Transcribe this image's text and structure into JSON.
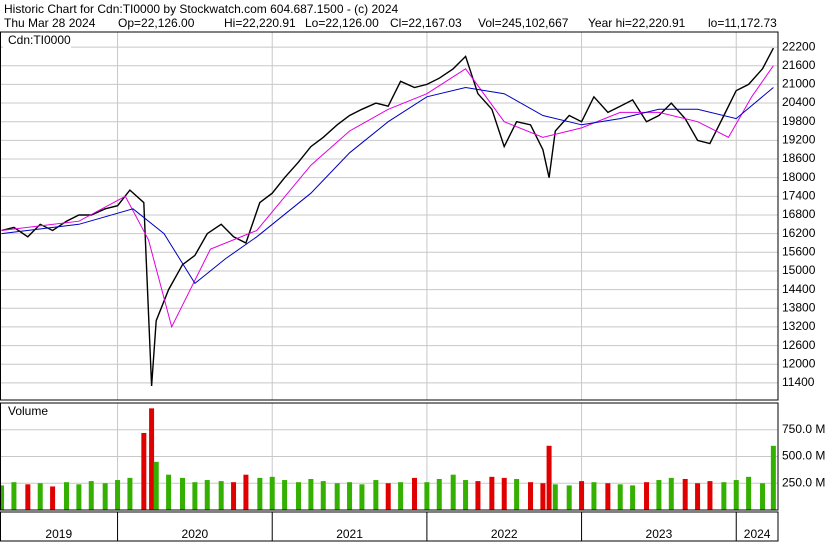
{
  "header": {
    "title": "Historic Chart for Cdn:TI0000 by Stockwatch.com 604.687.1500 - (c) 2024",
    "stats": [
      "Thu Mar 28 2024",
      "Op=22,126.00",
      "Hi=22,220.91",
      "Lo=22,126.00",
      "Cl=22,167.03",
      "Vol=245,102,667",
      "Year hi=22,220.91",
      "lo=11,172.73"
    ]
  },
  "chart_data": [
    {
      "type": "line",
      "title": "Cdn:TI0000",
      "xlim": [
        2019.24,
        2024.27
      ],
      "ylim": [
        10850,
        22685
      ],
      "yticks": [
        11400,
        12000,
        12600,
        13200,
        13800,
        14400,
        15000,
        15600,
        16200,
        16800,
        17400,
        18000,
        18600,
        19200,
        19800,
        20400,
        21000,
        21600,
        22200
      ],
      "grid": true,
      "series": [
        {
          "color": "#000000",
          "x": [
            2019.25,
            2019.33,
            2019.42,
            2019.5,
            2019.58,
            2019.67,
            2019.75,
            2019.83,
            2019.92,
            2020.0,
            2020.08,
            2020.17,
            2020.22,
            2020.25,
            2020.33,
            2020.42,
            2020.5,
            2020.58,
            2020.67,
            2020.75,
            2020.83,
            2020.92,
            2021.0,
            2021.08,
            2021.17,
            2021.25,
            2021.33,
            2021.42,
            2021.5,
            2021.58,
            2021.67,
            2021.75,
            2021.83,
            2021.92,
            2022.0,
            2022.08,
            2022.17,
            2022.25,
            2022.33,
            2022.42,
            2022.5,
            2022.58,
            2022.67,
            2022.75,
            2022.79,
            2022.83,
            2022.92,
            2023.0,
            2023.08,
            2023.17,
            2023.25,
            2023.33,
            2023.42,
            2023.5,
            2023.58,
            2023.67,
            2023.75,
            2023.83,
            2023.92,
            2024.0,
            2024.08,
            2024.17,
            2024.24
          ],
          "values": [
            16300,
            16400,
            16100,
            16500,
            16300,
            16600,
            16800,
            16800,
            17000,
            17100,
            17600,
            17200,
            11300,
            13400,
            14400,
            15200,
            15500,
            16200,
            16500,
            16100,
            15900,
            17200,
            17500,
            18000,
            18500,
            19000,
            19300,
            19700,
            20000,
            20200,
            20400,
            20300,
            21100,
            20900,
            21000,
            21200,
            21500,
            21900,
            20700,
            20200,
            19000,
            19800,
            19700,
            18900,
            18000,
            19500,
            20000,
            19800,
            20600,
            20100,
            20300,
            20500,
            19800,
            20000,
            20400,
            19900,
            19200,
            19100,
            20000,
            20800,
            21000,
            21500,
            22167
          ]
        },
        {
          "color": "#e000e0",
          "x": [
            2019.25,
            2019.75,
            2020.05,
            2020.2,
            2020.35,
            2020.6,
            2020.9,
            2021.25,
            2021.5,
            2021.75,
            2022.0,
            2022.25,
            2022.5,
            2022.75,
            2023.0,
            2023.25,
            2023.5,
            2023.75,
            2023.95,
            2024.1,
            2024.24
          ],
          "values": [
            16300,
            16600,
            17400,
            16000,
            13200,
            15700,
            16300,
            18400,
            19500,
            20200,
            20700,
            21500,
            19800,
            19300,
            19600,
            20100,
            20100,
            19800,
            19300,
            20600,
            21600
          ]
        },
        {
          "color": "#0000c0",
          "x": [
            2019.25,
            2019.75,
            2020.1,
            2020.3,
            2020.5,
            2020.7,
            2020.9,
            2021.25,
            2021.5,
            2021.75,
            2022.0,
            2022.25,
            2022.5,
            2022.75,
            2023.0,
            2023.25,
            2023.5,
            2023.75,
            2024.0,
            2024.24
          ],
          "values": [
            16200,
            16500,
            17000,
            16200,
            14600,
            15400,
            16100,
            17500,
            18800,
            19800,
            20600,
            20900,
            20700,
            20000,
            19700,
            19900,
            20200,
            20200,
            19900,
            20900
          ]
        }
      ]
    },
    {
      "type": "bar",
      "title": "Volume",
      "xlim": [
        2019.24,
        2024.27
      ],
      "ylim": [
        0,
        1000
      ],
      "yticks": [
        {
          "value": 250,
          "label": "250.0 M"
        },
        {
          "value": 500,
          "label": "500.0 M"
        },
        {
          "value": 750,
          "label": "750.0 M"
        }
      ],
      "grid": true,
      "up_color": "#33b000",
      "down_color": "#e00000",
      "x": [
        2019.25,
        2019.33,
        2019.42,
        2019.5,
        2019.58,
        2019.67,
        2019.75,
        2019.83,
        2019.92,
        2020.0,
        2020.08,
        2020.17,
        2020.22,
        2020.25,
        2020.33,
        2020.42,
        2020.5,
        2020.58,
        2020.67,
        2020.75,
        2020.83,
        2020.92,
        2021.0,
        2021.08,
        2021.17,
        2021.25,
        2021.33,
        2021.42,
        2021.5,
        2021.58,
        2021.67,
        2021.75,
        2021.83,
        2021.92,
        2022.0,
        2022.08,
        2022.17,
        2022.25,
        2022.33,
        2022.42,
        2022.5,
        2022.58,
        2022.67,
        2022.75,
        2022.79,
        2022.83,
        2022.92,
        2023.0,
        2023.08,
        2023.17,
        2023.25,
        2023.33,
        2023.42,
        2023.5,
        2023.58,
        2023.67,
        2023.75,
        2023.83,
        2023.92,
        2024.0,
        2024.08,
        2024.17,
        2024.24
      ],
      "values": [
        230,
        260,
        240,
        250,
        220,
        260,
        240,
        270,
        250,
        280,
        300,
        720,
        950,
        450,
        330,
        300,
        260,
        280,
        270,
        260,
        330,
        300,
        310,
        280,
        260,
        290,
        270,
        250,
        260,
        240,
        280,
        250,
        260,
        300,
        260,
        290,
        330,
        280,
        270,
        310,
        300,
        290,
        260,
        250,
        600,
        240,
        230,
        270,
        260,
        250,
        240,
        230,
        260,
        280,
        300,
        290,
        250,
        270,
        260,
        280,
        310,
        250,
        600
      ],
      "xticks": [
        2020,
        2021,
        2022,
        2023,
        2024
      ],
      "year_labels": [
        "2019",
        "2020",
        "2021",
        "2022",
        "2023",
        "2024"
      ]
    }
  ]
}
